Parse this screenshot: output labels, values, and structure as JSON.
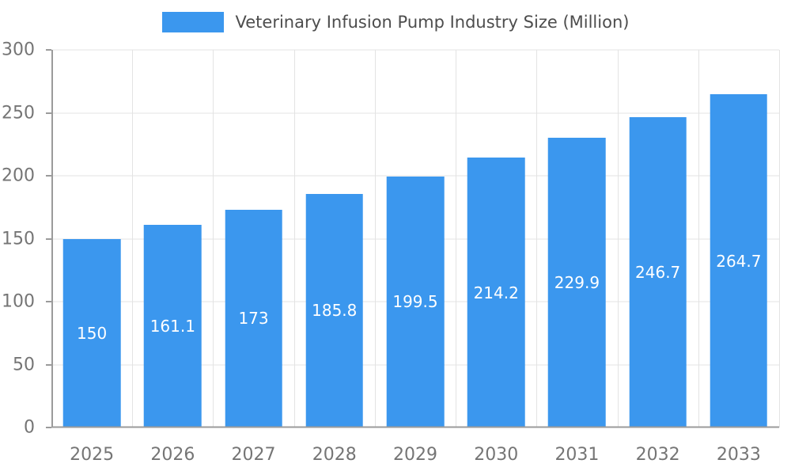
{
  "chart_data": {
    "type": "bar",
    "title": "Veterinary Infusion Pump Industry Size (Million)",
    "categories": [
      "2025",
      "2026",
      "2027",
      "2028",
      "2029",
      "2030",
      "2031",
      "2032",
      "2033"
    ],
    "values": [
      150,
      161.1,
      173,
      185.8,
      199.5,
      214.2,
      229.9,
      246.7,
      264.7
    ],
    "xlabel": "",
    "ylabel": "",
    "ylim": [
      0,
      300
    ],
    "yticks": [
      0,
      50,
      100,
      150,
      200,
      250,
      300
    ],
    "grid": true,
    "legend_position": "top",
    "bar_color": "#3B97EE",
    "bar_label_color": "#ffffff",
    "axis_color": "#9b9b9b",
    "grid_color": "#e3e3e3",
    "tick_label_color": "#757575",
    "title_color": "#4d4d4d"
  }
}
